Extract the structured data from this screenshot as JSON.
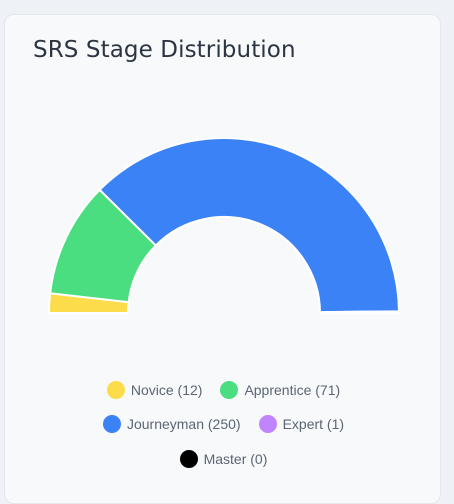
{
  "card": {
    "title": "SRS Stage Distribution"
  },
  "chart_data": {
    "type": "pie",
    "variant": "half-doughnut",
    "title": "SRS Stage Distribution",
    "legend_position": "bottom",
    "series": [
      {
        "name": "Novice",
        "value": 12,
        "color": "#fcdc4a",
        "legend_label": "Novice (12)"
      },
      {
        "name": "Apprentice",
        "value": 71,
        "color": "#4ade80",
        "legend_label": "Apprentice (71)"
      },
      {
        "name": "Journeyman",
        "value": 250,
        "color": "#3b82f6",
        "legend_label": "Journeyman (250)"
      },
      {
        "name": "Expert",
        "value": 1,
        "color": "#c084fc",
        "legend_label": "Expert (1)"
      },
      {
        "name": "Master",
        "value": 0,
        "color": "#000000",
        "legend_label": "Master (0)"
      }
    ]
  }
}
